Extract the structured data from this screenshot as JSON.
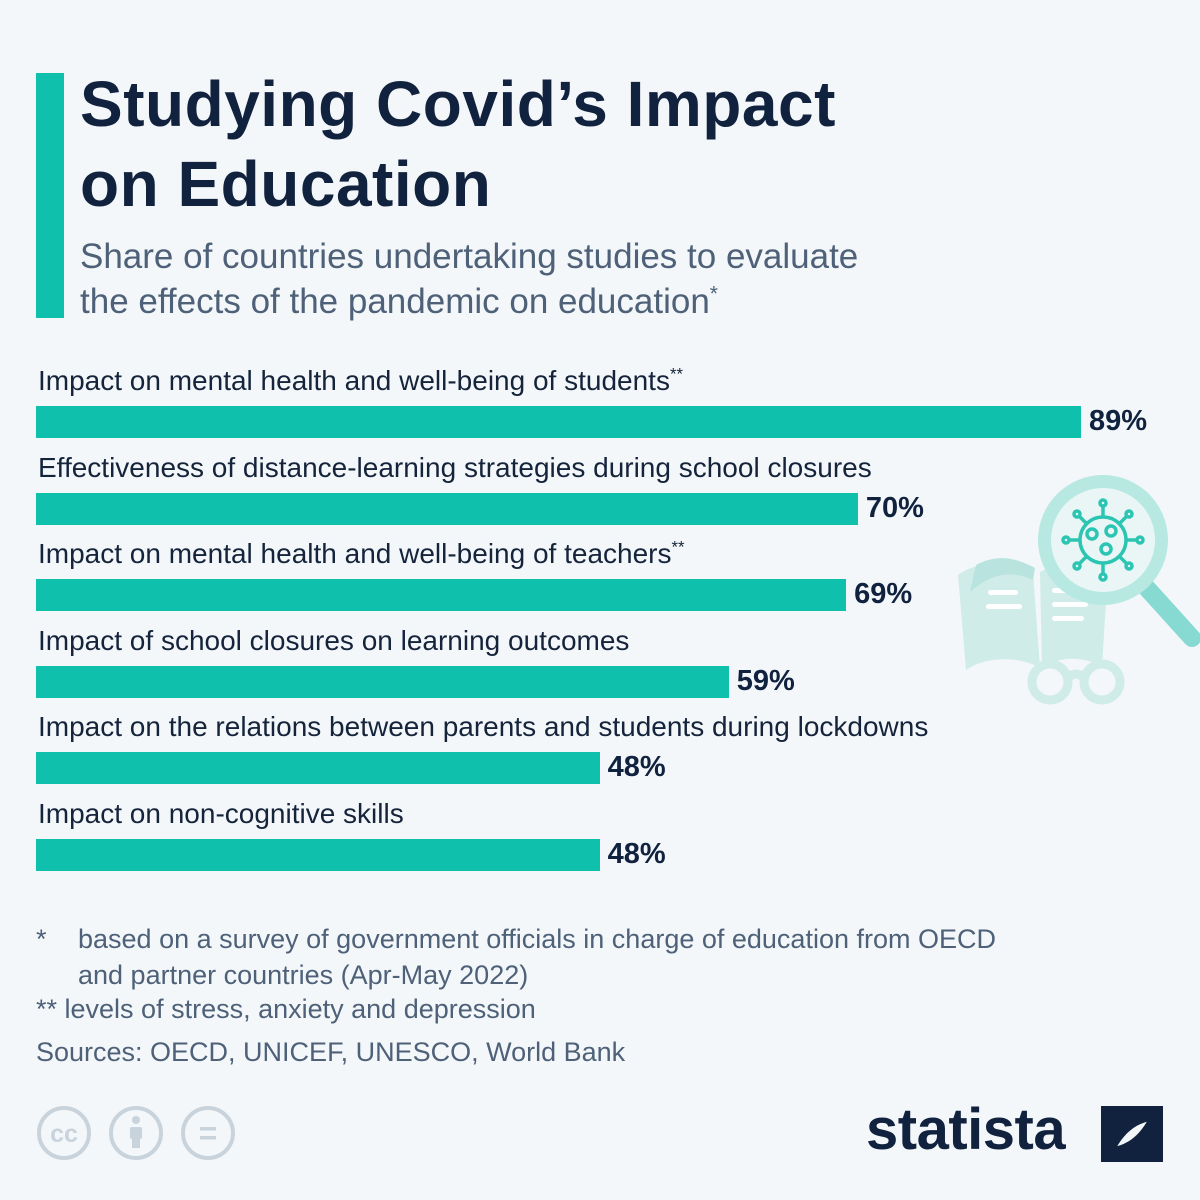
{
  "header": {
    "title_line1": "Studying Covid’s Impact",
    "title_line2": "on Education",
    "subtitle_line1": "Share of countries undertaking studies to evaluate",
    "subtitle_line2": "the effects of the pandemic on education",
    "subtitle_mark": "*"
  },
  "chart_data": {
    "type": "bar",
    "orientation": "horizontal",
    "title": "Studying Covid’s Impact on Education",
    "subtitle": "Share of countries undertaking studies to evaluate the effects of the pandemic on education*",
    "unit": "%",
    "xlim": [
      0,
      100
    ],
    "grid": false,
    "bars": [
      {
        "label": "Impact on mental health and well-being of students",
        "mark": "**",
        "value": 89,
        "display": "89%"
      },
      {
        "label": "Effectiveness of distance-learning strategies during school closures",
        "mark": "",
        "value": 70,
        "display": "70%"
      },
      {
        "label": "Impact on mental health and well-being of teachers",
        "mark": "**",
        "value": 69,
        "display": "69%"
      },
      {
        "label": "Impact of school closures on learning outcomes",
        "mark": "",
        "value": 59,
        "display": "59%"
      },
      {
        "label": "Impact on the relations between parents and students during lockdowns",
        "mark": "",
        "value": 48,
        "display": "48%"
      },
      {
        "label": "Impact on non-cognitive skills",
        "mark": "",
        "value": 48,
        "display": "48%"
      }
    ]
  },
  "footnotes": {
    "note1_mark": "*",
    "note1_line1": "based on a survey of government officials in charge of education from OECD",
    "note1_line2": "and partner countries (Apr-May 2022)",
    "note2_mark": "**",
    "note2_text": "levels of stress, anxiety and depression",
    "sources": "Sources: OECD, UNICEF, UNESCO, World Bank"
  },
  "license": {
    "cc_text": "cc",
    "equals_text": "="
  },
  "brand": {
    "logo_text": "statista",
    "accent_color": "#0fc0ad",
    "dark_color": "#11223e",
    "text_color": "#4e6178"
  }
}
